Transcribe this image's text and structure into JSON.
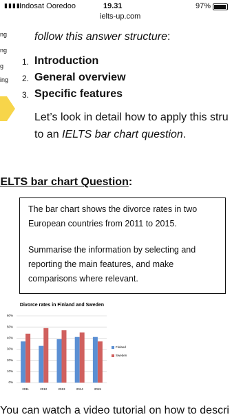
{
  "status_bar": {
    "carrier": "Indosat Ooredoo",
    "time": "19.31",
    "battery": "97%",
    "url": "ielts-up.com"
  },
  "sidebar": [
    "ng",
    "ng",
    "g",
    "ing"
  ],
  "intro": {
    "text": "follow this answer structure",
    "suffix": ":"
  },
  "structure": [
    {
      "number": "1.",
      "label": "Introduction"
    },
    {
      "number": "2.",
      "label": "General overview"
    },
    {
      "number": "3.",
      "label": "Specific features"
    }
  ],
  "paragraph": {
    "line1": "Let’s look in detail how to apply this stru",
    "line2_prefix": "to an ",
    "line2_italic": "IELTS bar chart question",
    "line2_suffix": "."
  },
  "heading": {
    "text": "IELTS bar chart Question",
    "suffix": ":"
  },
  "task_box": {
    "lines": [
      "The bar chart shows the divorce rates in two",
      "European countries from 2011 to 2015.",
      "Summarise the information by selecting and",
      "reporting the main features, and make",
      "comparisons where relevant."
    ]
  },
  "chart_data": {
    "type": "bar",
    "title": "Divorce rates in Finland and Sweden",
    "categories": [
      "2011",
      "2012",
      "2013",
      "2014",
      "2015"
    ],
    "series": [
      {
        "name": "Finland",
        "color": "#5b8fd3",
        "values": [
          37,
          33,
          39,
          41,
          41
        ]
      },
      {
        "name": "Sweden",
        "color": "#d0605e",
        "values": [
          44,
          49,
          47,
          45,
          37
        ]
      }
    ],
    "ylim": [
      0,
      60
    ],
    "yticks": [
      {
        "value": 0,
        "label": "0%"
      },
      {
        "value": 10,
        "label": "10%"
      },
      {
        "value": 20,
        "label": "20%"
      },
      {
        "value": 30,
        "label": "30%"
      },
      {
        "value": 40,
        "label": "40%"
      },
      {
        "value": 50,
        "label": "50%"
      },
      {
        "value": 60,
        "label": "60%"
      }
    ],
    "grid": true,
    "legend": "right"
  },
  "footer": {
    "text": "You can watch a video tutorial on how to descri"
  }
}
